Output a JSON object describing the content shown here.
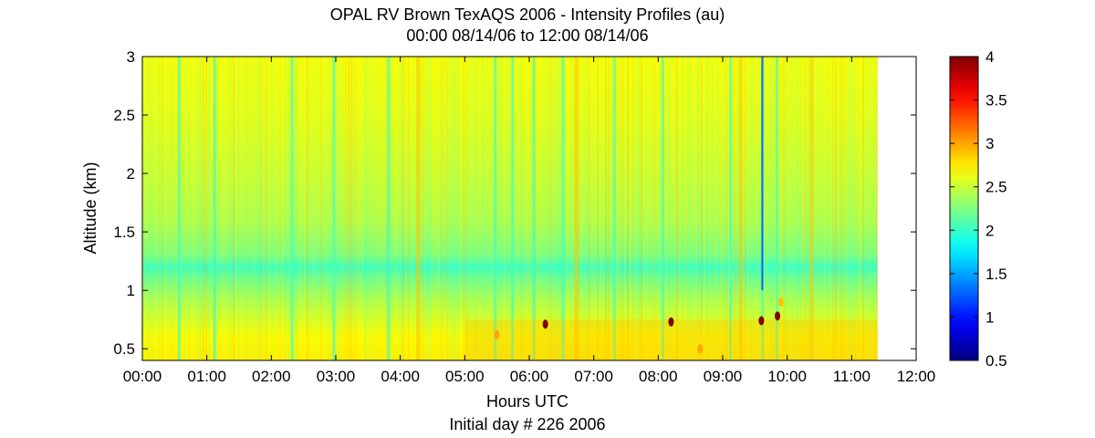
{
  "chart_data": {
    "type": "heatmap",
    "title": "OPAL RV Brown TexAQS 2006 - Intensity Profiles (au)",
    "subtitle": "00:00 08/14/06 to 12:00 08/14/06",
    "xlabel": "Hours UTC",
    "xlabel_secondary": "Initial day # 226  2006",
    "ylabel": "Altitude (km)",
    "x_unit": "hours",
    "xlim": [
      0,
      12
    ],
    "ylim": [
      0.4,
      3.0
    ],
    "x_ticks": [
      {
        "value": 0,
        "label": "00:00"
      },
      {
        "value": 1,
        "label": "01:00"
      },
      {
        "value": 2,
        "label": "02:00"
      },
      {
        "value": 3,
        "label": "03:00"
      },
      {
        "value": 4,
        "label": "04:00"
      },
      {
        "value": 5,
        "label": "05:00"
      },
      {
        "value": 6,
        "label": "06:00"
      },
      {
        "value": 7,
        "label": "07:00"
      },
      {
        "value": 8,
        "label": "08:00"
      },
      {
        "value": 9,
        "label": "09:00"
      },
      {
        "value": 10,
        "label": "10:00"
      },
      {
        "value": 11,
        "label": "11:00"
      },
      {
        "value": 12,
        "label": "12:00"
      }
    ],
    "y_ticks": [
      {
        "value": 0.5,
        "label": "0.5"
      },
      {
        "value": 1.0,
        "label": "1"
      },
      {
        "value": 1.5,
        "label": "1.5"
      },
      {
        "value": 2.0,
        "label": "2"
      },
      {
        "value": 2.5,
        "label": "2.5"
      },
      {
        "value": 3.0,
        "label": "3"
      }
    ],
    "data_end_hour": 11.4,
    "colormap": "jet",
    "colorbar": {
      "range": [
        0.5,
        4
      ],
      "ticks": [
        {
          "value": 0.5,
          "label": "0.5"
        },
        {
          "value": 1.0,
          "label": "1"
        },
        {
          "value": 1.5,
          "label": "1.5"
        },
        {
          "value": 2.0,
          "label": "2"
        },
        {
          "value": 2.5,
          "label": "2.5"
        },
        {
          "value": 3.0,
          "label": "3"
        },
        {
          "value": 3.5,
          "label": "3.5"
        },
        {
          "value": 4.0,
          "label": "4"
        }
      ]
    },
    "altitude_profile": [
      {
        "altitude_km": 0.4,
        "intensity": 2.75
      },
      {
        "altitude_km": 0.6,
        "intensity": 2.7
      },
      {
        "altitude_km": 0.8,
        "intensity": 2.5
      },
      {
        "altitude_km": 0.95,
        "intensity": 2.35
      },
      {
        "altitude_km": 1.1,
        "intensity": 2.15
      },
      {
        "altitude_km": 1.2,
        "intensity": 1.95
      },
      {
        "altitude_km": 1.3,
        "intensity": 2.2
      },
      {
        "altitude_km": 1.6,
        "intensity": 2.4
      },
      {
        "altitude_km": 2.0,
        "intensity": 2.5
      },
      {
        "altitude_km": 2.5,
        "intensity": 2.6
      },
      {
        "altitude_km": 3.0,
        "intensity": 2.65
      }
    ],
    "low_intensity_columns_hours": [
      0.55,
      1.1,
      2.3,
      2.95,
      3.8,
      5.45,
      5.72,
      6.05,
      6.5,
      7.3,
      8.05,
      9.1,
      9.6,
      9.82
    ],
    "high_intensity_columns_hours": [
      4.25,
      6.7,
      9.25,
      10.35
    ],
    "high_intensity_spots": [
      {
        "hour": 5.5,
        "altitude_km": 0.62,
        "intensity": 3.0
      },
      {
        "hour": 6.25,
        "altitude_km": 0.71,
        "intensity": 4.0
      },
      {
        "hour": 8.2,
        "altitude_km": 0.73,
        "intensity": 4.0
      },
      {
        "hour": 9.6,
        "altitude_km": 0.74,
        "intensity": 4.0
      },
      {
        "hour": 9.85,
        "altitude_km": 0.78,
        "intensity": 4.0
      },
      {
        "hour": 8.65,
        "altitude_km": 0.5,
        "intensity": 3.0
      },
      {
        "hour": 9.9,
        "altitude_km": 0.9,
        "intensity": 2.9
      }
    ]
  }
}
